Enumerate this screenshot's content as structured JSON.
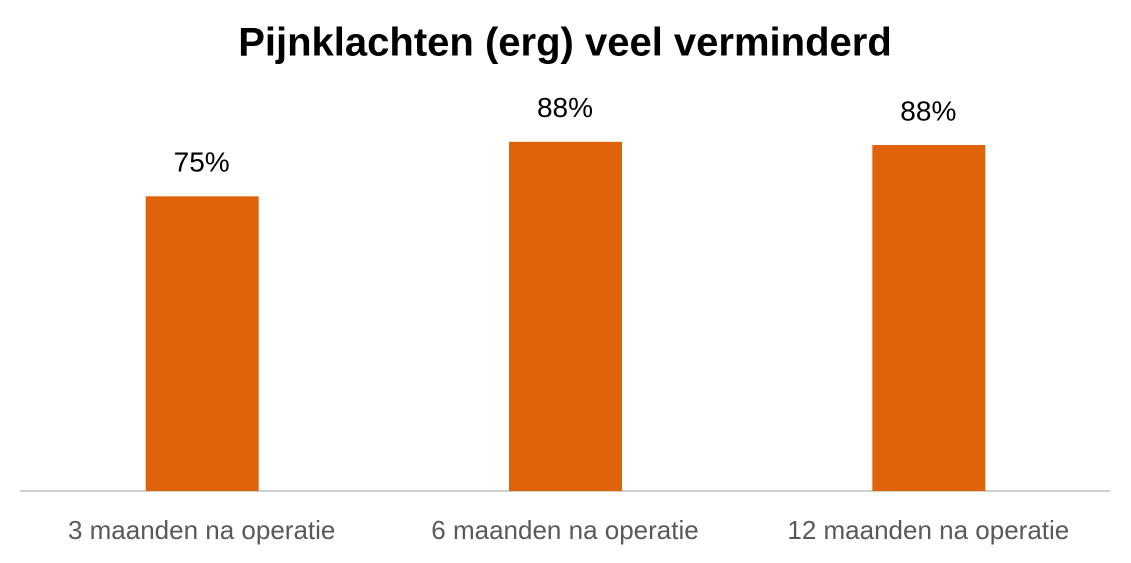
{
  "chart_data": {
    "type": "bar",
    "title": "Pijnklachten (erg) veel verminderd",
    "categories": [
      "3 maanden na operatie",
      "6 maanden na operatie",
      "12 maanden na operatie"
    ],
    "values": [
      74.6,
      88.4,
      87.6
    ],
    "value_labels": [
      "75%",
      "88%",
      "88%"
    ],
    "color": "#e0620a",
    "ylim": [
      0,
      100
    ]
  }
}
